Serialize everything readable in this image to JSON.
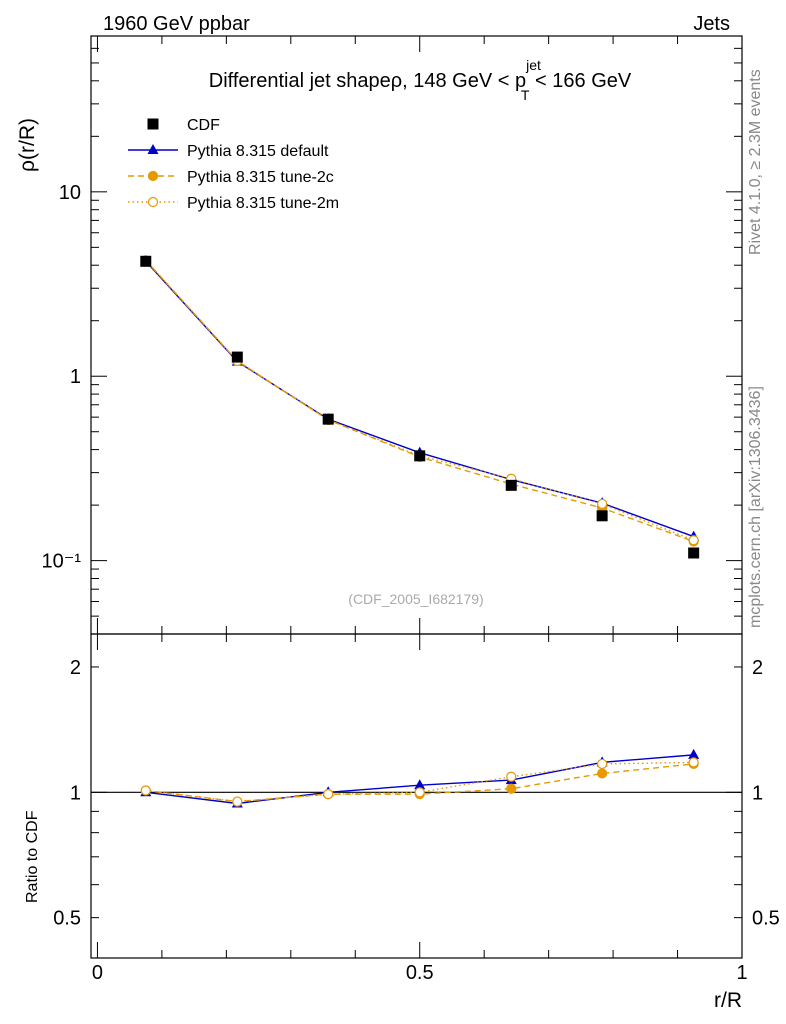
{
  "header": {
    "left": "1960 GeV ppbar",
    "right": "Jets"
  },
  "side_labels": {
    "rivet": "Rivet 4.1.0, ≥ 2.3M events",
    "mcplots": "mcplots.cern.ch [arXiv:1306.3436]"
  },
  "watermark": "(CDF_2005_I682179)",
  "title": {
    "prefix": "Differential jet shapeρ, 148 GeV < p",
    "sup": "jet",
    "sub": "T",
    "suffix": " < 166 GeV"
  },
  "colors": {
    "data": "#000000",
    "default": "#0000cc",
    "tune": "#e69900"
  },
  "chart_data": [
    {
      "type": "line",
      "panel": "main",
      "scale": "log",
      "ylabel": "ρ(r/R)",
      "xlim": [
        -0.01,
        1.0
      ],
      "ylim": [
        0.04,
        70
      ],
      "y_tick_labels": [
        {
          "value": 10,
          "label": "10"
        },
        {
          "value": 1,
          "label": "1"
        },
        {
          "value": 0.1,
          "label": "10⁻¹"
        }
      ],
      "legend_position": "top-left",
      "x": [
        0.075,
        0.217,
        0.358,
        0.5,
        0.642,
        0.783,
        0.925
      ],
      "series": [
        {
          "name": "CDF",
          "style": "data",
          "values": [
            4.2,
            1.27,
            0.585,
            0.37,
            0.256,
            0.175,
            0.11
          ]
        },
        {
          "name": "Pythia 8.315 default",
          "style": "default",
          "values": [
            4.2,
            1.2,
            0.585,
            0.385,
            0.275,
            0.205,
            0.135
          ]
        },
        {
          "name": "Pythia 8.315 tune-2c",
          "style": "tune2c",
          "values": [
            4.25,
            1.21,
            0.58,
            0.365,
            0.26,
            0.193,
            0.127
          ]
        },
        {
          "name": "Pythia 8.315 tune-2m",
          "style": "tune2m",
          "values": [
            4.25,
            1.21,
            0.58,
            0.37,
            0.278,
            0.203,
            0.129
          ]
        }
      ]
    },
    {
      "type": "line",
      "panel": "ratio",
      "scale": "log",
      "ylabel": "Ratio to CDF",
      "xlabel": "r/R",
      "xlim": [
        -0.01,
        1.0
      ],
      "ylim": [
        0.4,
        2.4
      ],
      "x_tick_labels": [
        {
          "value": 0,
          "label": "0"
        },
        {
          "value": 0.5,
          "label": "0.5"
        },
        {
          "value": 1,
          "label": "1"
        }
      ],
      "y_tick_labels": [
        {
          "value": 2,
          "label": "2"
        },
        {
          "value": 1,
          "label": "1"
        },
        {
          "value": 0.5,
          "label": "0.5"
        }
      ],
      "reference": 1,
      "x": [
        0.075,
        0.217,
        0.358,
        0.5,
        0.642,
        0.783,
        0.925
      ],
      "series": [
        {
          "name": "Pythia 8.315 default",
          "style": "default",
          "values": [
            1.0,
            0.94,
            1.0,
            1.04,
            1.07,
            1.18,
            1.23
          ]
        },
        {
          "name": "Pythia 8.315 tune-2c",
          "style": "tune2c",
          "values": [
            1.01,
            0.95,
            0.99,
            0.99,
            1.02,
            1.11,
            1.17
          ]
        },
        {
          "name": "Pythia 8.315 tune-2m",
          "style": "tune2m",
          "values": [
            1.01,
            0.95,
            0.99,
            1.0,
            1.09,
            1.17,
            1.18
          ]
        }
      ]
    }
  ]
}
